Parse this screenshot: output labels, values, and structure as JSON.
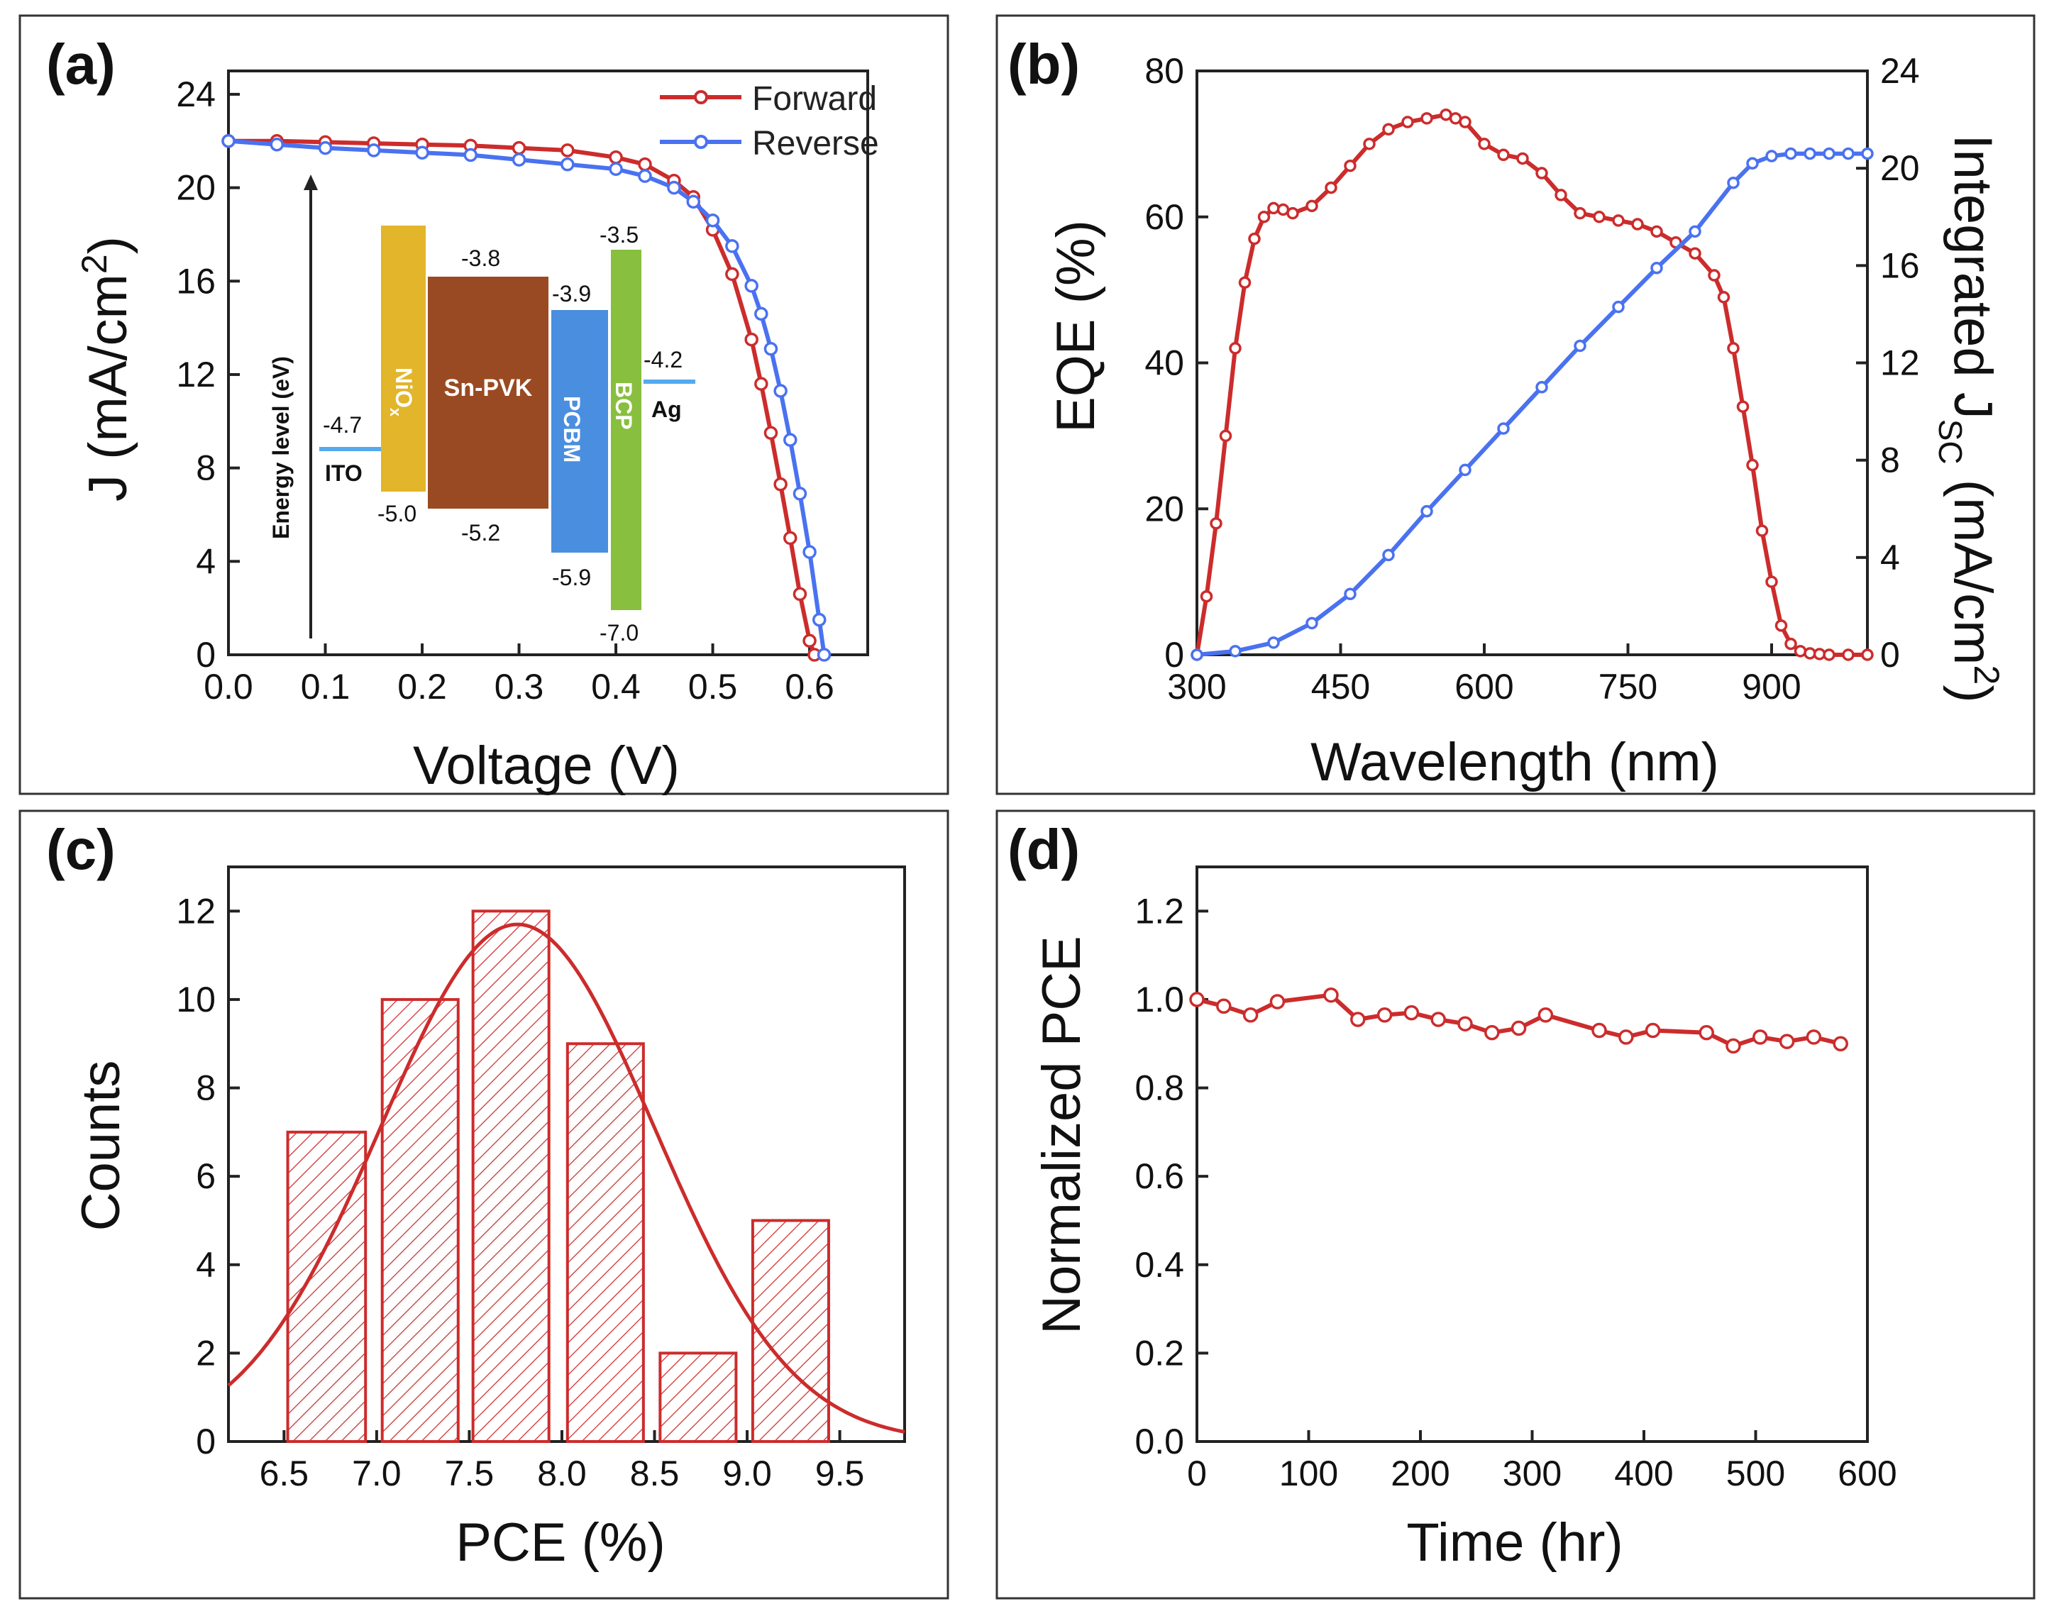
{
  "colors": {
    "red": "#cc2c2c",
    "blue": "#4a72f0",
    "frame": "#333333",
    "ito_ag": "#55aaee",
    "nio": "#e2b52a",
    "pvk": "#9a4a22",
    "pcbm": "#4a8ee0",
    "bcp": "#88bf3e"
  },
  "chart_data": [
    {
      "id": "a",
      "type": "line",
      "panel_label": "(a)",
      "xlabel": "Voltage (V)",
      "ylabel": "J (mA/cm",
      "ylabel_sup": "2",
      "ylabel_tail": ")",
      "xlim": [
        0,
        0.66
      ],
      "ylim": [
        0,
        25
      ],
      "xticks": [
        "0.0",
        "0.1",
        "0.2",
        "0.3",
        "0.4",
        "0.5",
        "0.6"
      ],
      "yticks": [
        "0",
        "4",
        "8",
        "12",
        "16",
        "20",
        "24"
      ],
      "legend": [
        "Forward",
        "Reverse"
      ],
      "series": [
        {
          "name": "Forward",
          "x": [
            0,
            0.05,
            0.1,
            0.15,
            0.2,
            0.25,
            0.3,
            0.35,
            0.4,
            0.43,
            0.46,
            0.48,
            0.5,
            0.52,
            0.54,
            0.55,
            0.56,
            0.57,
            0.58,
            0.59,
            0.6,
            0.605
          ],
          "y": [
            22.0,
            22.0,
            21.95,
            21.9,
            21.85,
            21.8,
            21.7,
            21.6,
            21.3,
            21.0,
            20.3,
            19.6,
            18.2,
            16.3,
            13.5,
            11.6,
            9.5,
            7.3,
            5.0,
            2.6,
            0.6,
            0
          ]
        },
        {
          "name": "Reverse",
          "x": [
            0,
            0.05,
            0.1,
            0.15,
            0.2,
            0.25,
            0.3,
            0.35,
            0.4,
            0.43,
            0.46,
            0.48,
            0.5,
            0.52,
            0.54,
            0.55,
            0.56,
            0.57,
            0.58,
            0.59,
            0.6,
            0.61,
            0.615
          ],
          "y": [
            22.0,
            21.85,
            21.7,
            21.6,
            21.5,
            21.4,
            21.2,
            21.0,
            20.8,
            20.5,
            20.0,
            19.4,
            18.6,
            17.5,
            15.8,
            14.6,
            13.1,
            11.3,
            9.2,
            6.9,
            4.4,
            1.5,
            0
          ]
        }
      ],
      "inset": {
        "axis_label": "Energy level (eV)",
        "layers": [
          {
            "name": "ITO",
            "kind": "line",
            "level": "-4.7"
          },
          {
            "name": "NiO",
            "sub": "x",
            "top": "",
            "bottom": "-5.0"
          },
          {
            "name": "Sn-PVK",
            "top": "-3.8",
            "bottom": "-5.2"
          },
          {
            "name": "PCBM",
            "top": "-3.9",
            "bottom": "-5.9"
          },
          {
            "name": "BCP",
            "top": "-3.5",
            "bottom": "-7.0"
          },
          {
            "name": "Ag",
            "kind": "line",
            "level": "-4.2"
          }
        ]
      }
    },
    {
      "id": "b",
      "type": "line",
      "panel_label": "(b)",
      "xlabel": "Wavelength (nm)",
      "ylabel": "EQE (%)",
      "ylabel_right": "Integrated J",
      "ylabel_right_sub": "SC",
      "ylabel_right_tail": " (mA/cm",
      "ylabel_right_sup": "2",
      "ylabel_right_end": ")",
      "xlim": [
        300,
        1000
      ],
      "ylim": [
        0,
        80
      ],
      "ylim_right": [
        0,
        24
      ],
      "xticks": [
        "300",
        "450",
        "600",
        "750",
        "900"
      ],
      "yticks": [
        "0",
        "20",
        "40",
        "60",
        "80"
      ],
      "yticks_right": [
        "0",
        "4",
        "8",
        "12",
        "16",
        "20",
        "24"
      ],
      "series": [
        {
          "name": "EQE",
          "axis": "left",
          "x": [
            300,
            310,
            320,
            330,
            340,
            350,
            360,
            370,
            380,
            390,
            400,
            420,
            440,
            460,
            480,
            500,
            520,
            540,
            560,
            570,
            580,
            600,
            620,
            640,
            660,
            680,
            700,
            720,
            740,
            760,
            780,
            800,
            820,
            840,
            850,
            860,
            870,
            880,
            890,
            900,
            910,
            920,
            930,
            940,
            950,
            960,
            980,
            1000
          ],
          "y": [
            0,
            8,
            18,
            30,
            42,
            51,
            57,
            60,
            61.2,
            61,
            60.5,
            61.5,
            64,
            67,
            70,
            72,
            73,
            73.5,
            74,
            73.5,
            73,
            70,
            68.5,
            68,
            66,
            63,
            60.5,
            60,
            59.5,
            59,
            58,
            56.5,
            55,
            52,
            49,
            42,
            34,
            26,
            17,
            10,
            4,
            1.5,
            0.5,
            0.2,
            0.1,
            0,
            0,
            0
          ]
        },
        {
          "name": "Integrated JSC",
          "axis": "right",
          "x": [
            300,
            340,
            380,
            420,
            460,
            500,
            540,
            580,
            620,
            660,
            700,
            740,
            780,
            820,
            860,
            880,
            900,
            920,
            940,
            960,
            980,
            1000
          ],
          "y": [
            0,
            0.15,
            0.5,
            1.3,
            2.5,
            4.1,
            5.9,
            7.6,
            9.3,
            11.0,
            12.7,
            14.3,
            15.9,
            17.4,
            19.4,
            20.2,
            20.5,
            20.6,
            20.6,
            20.6,
            20.6,
            20.6
          ]
        }
      ]
    },
    {
      "id": "c",
      "type": "bar",
      "panel_label": "(c)",
      "xlabel": "PCE (%)",
      "ylabel": "Counts",
      "xlim": [
        6.2,
        9.85
      ],
      "ylim": [
        0,
        13
      ],
      "xticks": [
        "6.5",
        "7.0",
        "7.5",
        "8.0",
        "8.5",
        "9.0",
        "9.5"
      ],
      "yticks": [
        "0",
        "2",
        "4",
        "6",
        "8",
        "10",
        "12"
      ],
      "bins": [
        {
          "x0": 6.52,
          "x1": 6.94,
          "count": 7
        },
        {
          "x0": 7.03,
          "x1": 7.44,
          "count": 10
        },
        {
          "x0": 7.52,
          "x1": 7.93,
          "count": 12
        },
        {
          "x0": 8.03,
          "x1": 8.44,
          "count": 9
        },
        {
          "x0": 8.53,
          "x1": 8.94,
          "count": 2
        },
        {
          "x0": 9.03,
          "x1": 9.44,
          "count": 5
        }
      ],
      "fit": {
        "type": "gaussian",
        "amplitude": 11.7,
        "mean": 7.76,
        "sigma": 0.74
      }
    },
    {
      "id": "d",
      "type": "line",
      "panel_label": "(d)",
      "xlabel": "Time (hr)",
      "ylabel": "Normalized PCE",
      "xlim": [
        0,
        600
      ],
      "ylim": [
        0,
        1.3
      ],
      "xticks": [
        "0",
        "100",
        "200",
        "300",
        "400",
        "500",
        "600"
      ],
      "yticks": [
        "0.0",
        "0.2",
        "0.4",
        "0.6",
        "0.8",
        "1.0",
        "1.2"
      ],
      "series": [
        {
          "name": "Normalized PCE",
          "x": [
            0,
            24,
            48,
            72,
            120,
            144,
            168,
            192,
            216,
            240,
            264,
            288,
            312,
            360,
            384,
            408,
            456,
            480,
            504,
            528,
            552,
            576
          ],
          "y": [
            1.0,
            0.985,
            0.965,
            0.995,
            1.01,
            0.955,
            0.965,
            0.97,
            0.955,
            0.945,
            0.925,
            0.935,
            0.965,
            0.93,
            0.915,
            0.93,
            0.925,
            0.895,
            0.915,
            0.905,
            0.915,
            0.9
          ]
        }
      ]
    }
  ]
}
